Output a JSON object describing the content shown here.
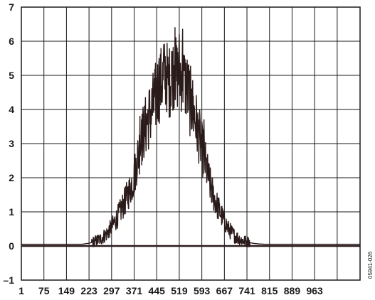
{
  "figure_id": "05941-026",
  "chart_data": {
    "type": "line",
    "title": "",
    "xlabel": "",
    "ylabel": "",
    "xlim": [
      1,
      1112
    ],
    "ylim": [
      -1,
      7
    ],
    "grid": true,
    "line_color": "#2a1a1a",
    "x_ticks": [
      1,
      75,
      149,
      223,
      297,
      371,
      445,
      519,
      593,
      667,
      741,
      815,
      889,
      963
    ],
    "x_tick_labels": [
      "1",
      "75",
      "149",
      "223",
      "297",
      "371",
      "445",
      "519",
      "593",
      "667",
      "741",
      "815",
      "889",
      "963"
    ],
    "y_ticks": [
      -1,
      0,
      1,
      2,
      3,
      4,
      5,
      6,
      7
    ],
    "y_tick_labels": [
      "–1",
      "0",
      "1",
      "2",
      "3",
      "4",
      "5",
      "6",
      "7"
    ],
    "series": [
      {
        "x": [
          1,
          200,
          223,
          240,
          260,
          280,
          297,
          310,
          325,
          340,
          355,
          371,
          380,
          390,
          400,
          410,
          420,
          430,
          440,
          445,
          455,
          465,
          475,
          485,
          495,
          505,
          512,
          519,
          525,
          532,
          540,
          548,
          556,
          564,
          572,
          580,
          590,
          600,
          610,
          620,
          630,
          645,
          660,
          680,
          700,
          720,
          741,
          760,
          780,
          800,
          815,
          1112
        ],
        "y": [
          0.05,
          0.05,
          0.08,
          0.12,
          0.2,
          0.35,
          0.55,
          0.75,
          1.0,
          1.3,
          1.6,
          2.0,
          2.5,
          2.9,
          3.3,
          3.55,
          3.8,
          4.0,
          4.3,
          4.5,
          4.7,
          4.9,
          5.05,
          4.75,
          5.05,
          5.1,
          5.0,
          5.2,
          5.0,
          4.9,
          4.75,
          4.5,
          4.2,
          4.0,
          3.7,
          3.4,
          3.0,
          2.6,
          2.2,
          1.8,
          1.5,
          1.15,
          0.85,
          0.5,
          0.3,
          0.18,
          0.12,
          0.08,
          0.06,
          0.05,
          0.05,
          0.05
        ]
      }
    ],
    "peaks": [
      {
        "x": 468,
        "y": 5.9
      },
      {
        "x": 494,
        "y": 5.7
      },
      {
        "x": 505,
        "y": 6.4
      },
      {
        "x": 512,
        "y": 5.8
      },
      {
        "x": 519,
        "y": 6.2
      },
      {
        "x": 530,
        "y": 6.35
      },
      {
        "x": 537,
        "y": 5.3
      },
      {
        "x": 440,
        "y": 5.0
      },
      {
        "x": 453,
        "y": 5.5
      },
      {
        "x": 560,
        "y": 4.6
      },
      {
        "x": 390,
        "y": 3.8
      },
      {
        "x": 395,
        "y": 3.7
      },
      {
        "x": 405,
        "y": 4.1
      },
      {
        "x": 580,
        "y": 3.9
      },
      {
        "x": 600,
        "y": 3.7
      }
    ]
  }
}
